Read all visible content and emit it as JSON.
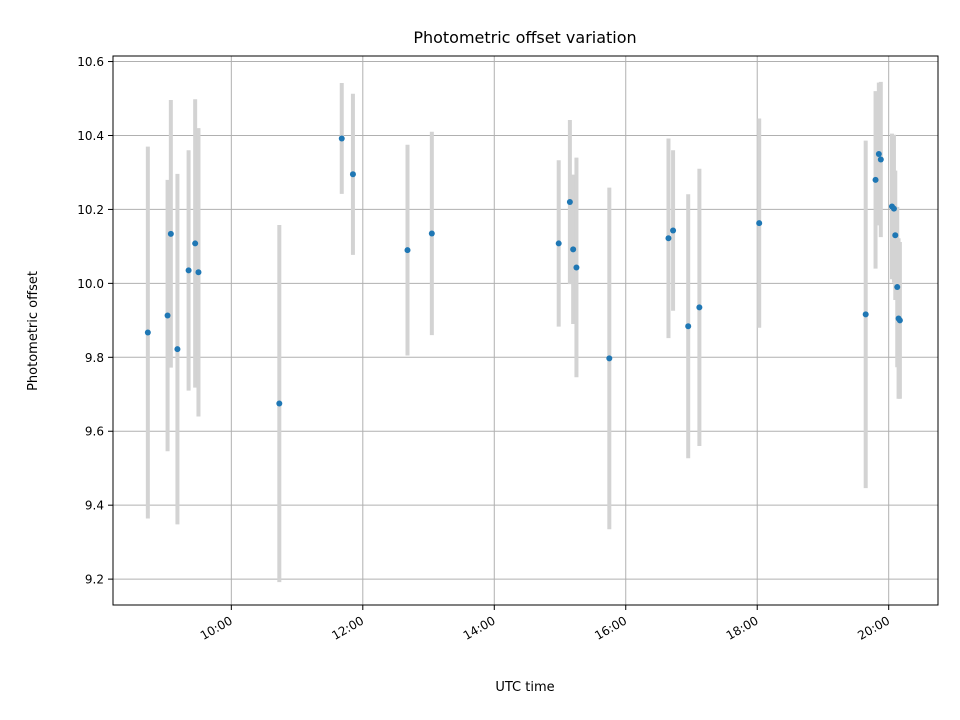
{
  "chart_data": {
    "type": "scatter",
    "title": "Photometric offset variation",
    "xlabel": "UTC time",
    "ylabel": "Photometric offset",
    "x_unit": "hours UTC",
    "xlim": [
      8.2,
      20.75
    ],
    "ylim": [
      9.13,
      10.615
    ],
    "xticks": [
      {
        "value": 10,
        "label": "10:00"
      },
      {
        "value": 12,
        "label": "12:00"
      },
      {
        "value": 14,
        "label": "14:00"
      },
      {
        "value": 16,
        "label": "16:00"
      },
      {
        "value": 18,
        "label": "18:00"
      },
      {
        "value": 20,
        "label": "20:00"
      }
    ],
    "yticks": [
      {
        "value": 9.2,
        "label": "9.2"
      },
      {
        "value": 9.4,
        "label": "9.4"
      },
      {
        "value": 9.6,
        "label": "9.6"
      },
      {
        "value": 9.8,
        "label": "9.8"
      },
      {
        "value": 10.0,
        "label": "10.0"
      },
      {
        "value": 10.2,
        "label": "10.2"
      },
      {
        "value": 10.4,
        "label": "10.4"
      },
      {
        "value": 10.6,
        "label": "10.6"
      }
    ],
    "grid": true,
    "colors": {
      "marker": "#1f77b4",
      "errorbar": "#d3d3d3",
      "grid": "#b0b0b0"
    },
    "points": [
      {
        "x": 8.73,
        "y": 9.867,
        "err": 0.503
      },
      {
        "x": 9.03,
        "y": 9.913,
        "err": 0.367
      },
      {
        "x": 9.08,
        "y": 10.134,
        "err": 0.362
      },
      {
        "x": 9.18,
        "y": 9.822,
        "err": 0.474
      },
      {
        "x": 9.35,
        "y": 10.035,
        "err": 0.325
      },
      {
        "x": 9.45,
        "y": 10.108,
        "err": 0.39
      },
      {
        "x": 9.5,
        "y": 10.03,
        "err": 0.39
      },
      {
        "x": 10.73,
        "y": 9.675,
        "err": 0.483
      },
      {
        "x": 11.68,
        "y": 10.392,
        "err": 0.15
      },
      {
        "x": 11.85,
        "y": 10.295,
        "err": 0.218
      },
      {
        "x": 12.68,
        "y": 10.09,
        "err": 0.285
      },
      {
        "x": 13.05,
        "y": 10.135,
        "err": 0.275
      },
      {
        "x": 14.98,
        "y": 10.108,
        "err": 0.225
      },
      {
        "x": 15.15,
        "y": 10.22,
        "err": 0.222
      },
      {
        "x": 15.2,
        "y": 10.092,
        "err": 0.202
      },
      {
        "x": 15.25,
        "y": 10.043,
        "err": 0.297
      },
      {
        "x": 15.75,
        "y": 9.797,
        "err": 0.462
      },
      {
        "x": 16.65,
        "y": 10.122,
        "err": 0.27
      },
      {
        "x": 16.72,
        "y": 10.143,
        "err": 0.217
      },
      {
        "x": 16.95,
        "y": 9.884,
        "err": 0.357
      },
      {
        "x": 17.12,
        "y": 9.935,
        "err": 0.375
      },
      {
        "x": 18.03,
        "y": 10.163,
        "err": 0.283
      },
      {
        "x": 19.65,
        "y": 9.916,
        "err": 0.47
      },
      {
        "x": 19.8,
        "y": 10.28,
        "err": 0.24
      },
      {
        "x": 19.85,
        "y": 10.35,
        "err": 0.193
      },
      {
        "x": 19.88,
        "y": 10.335,
        "err": 0.21
      },
      {
        "x": 20.05,
        "y": 10.208,
        "err": 0.197
      },
      {
        "x": 20.08,
        "y": 10.202,
        "err": 0.2
      },
      {
        "x": 20.1,
        "y": 10.13,
        "err": 0.175
      },
      {
        "x": 20.13,
        "y": 9.99,
        "err": 0.217
      },
      {
        "x": 20.15,
        "y": 9.905,
        "err": 0.217
      },
      {
        "x": 20.17,
        "y": 9.9,
        "err": 0.212
      }
    ]
  }
}
